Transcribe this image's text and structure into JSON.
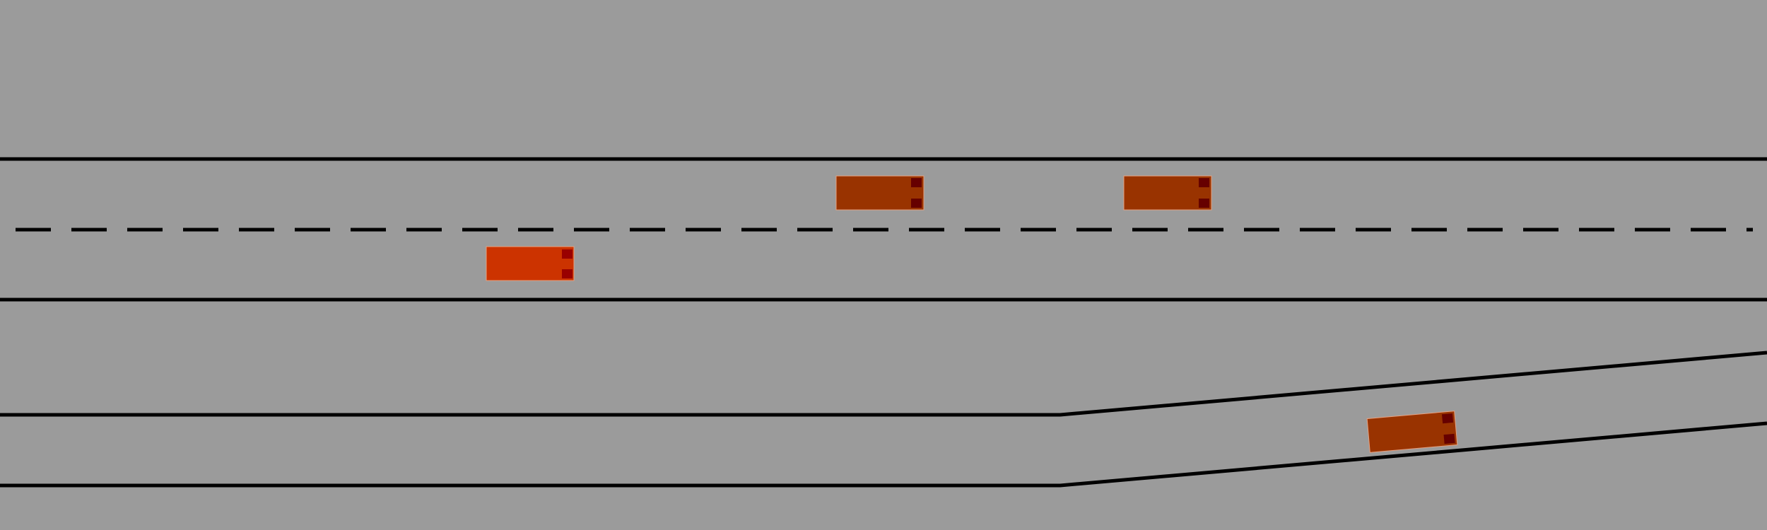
{
  "scene": {
    "background_color": "#9b9b9b",
    "lane_marking_color": "#000000",
    "main_road": {
      "lanes": 2,
      "center_line": "dashed"
    },
    "ramp": {
      "lanes": 1,
      "shape": "straight then angled upward to the right"
    },
    "vehicles": [
      {
        "id": "ego",
        "color": "#cc3300",
        "light_color": "#990000",
        "lane": "main-right-lane"
      },
      {
        "id": "car-1",
        "color": "#993300",
        "light_color": "#660000",
        "lane": "main-left-lane"
      },
      {
        "id": "car-2",
        "color": "#993300",
        "light_color": "#660000",
        "lane": "main-left-lane"
      },
      {
        "id": "car-3",
        "color": "#993300",
        "light_color": "#660000",
        "lane": "ramp-lane"
      }
    ]
  }
}
